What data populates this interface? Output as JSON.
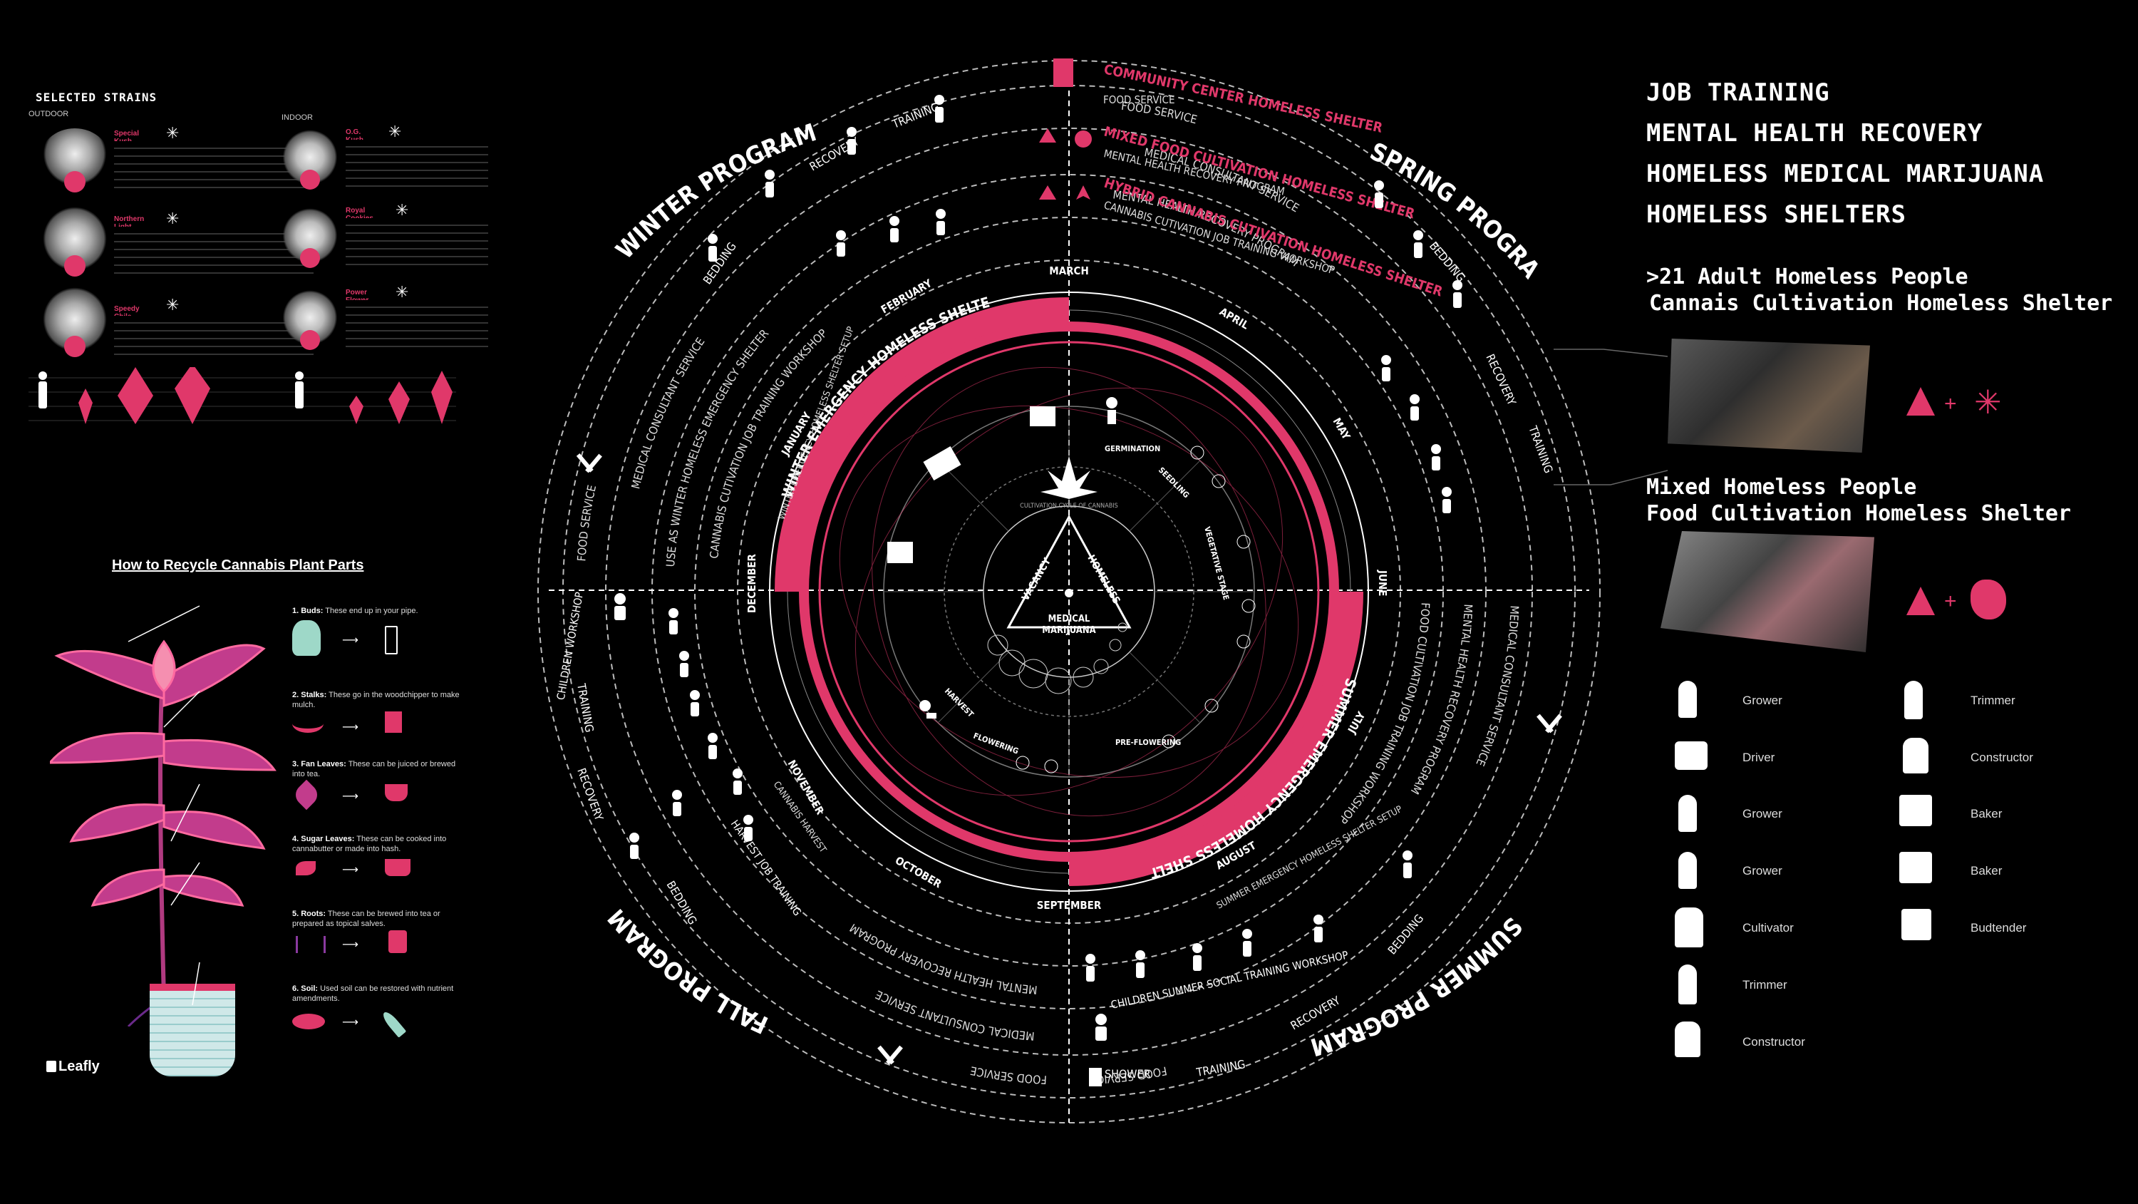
{
  "strains": {
    "heading": "SELECTED STRAINS",
    "outdoor_label": "OUTDOOR",
    "indoor_label": "INDOOR",
    "outdoor": [
      {
        "name": "Special Kush #1"
      },
      {
        "name": "Northern Light"
      },
      {
        "name": "Speedy Chile"
      }
    ],
    "indoor": [
      {
        "name": "O.G. Kush"
      },
      {
        "name": "Royal Cookies"
      },
      {
        "name": "Power Flower"
      }
    ]
  },
  "recycle": {
    "title": "How to Recycle Cannabis Plant Parts",
    "items": [
      {
        "label": "1. Buds:",
        "text": "These end up in your pipe."
      },
      {
        "label": "2. Stalks:",
        "text": "These go in the woodchipper to make mulch."
      },
      {
        "label": "3. Fan Leaves:",
        "text": "These can be juiced or brewed into tea."
      },
      {
        "label": "4. Sugar Leaves:",
        "text": "These can be cooked into cannabutter or made into hash."
      },
      {
        "label": "5. Roots:",
        "text": "These can be brewed into tea or prepared as topical salves."
      },
      {
        "label": "6. Soil:",
        "text": "Used soil can be restored with nutrient amendments."
      }
    ],
    "logo": "Leafly"
  },
  "wheel": {
    "programs": {
      "winter": "WINTER PROGRAM",
      "spring": "SPRING PROGRAM",
      "summer": "SUMMER PROGRAM",
      "fall": "FALL PROGRAM"
    },
    "months": [
      "MARCH",
      "APRIL",
      "MAY",
      "JUNE",
      "JULY",
      "AUGUST",
      "SEPTEMBER",
      "OCTOBER",
      "NOVEMBER",
      "DECEMBER",
      "JANUARY",
      "FEBRUARY"
    ],
    "shelter_top": {
      "community": "COMMUNITY CENTER HOMELESS SHELTER",
      "mixed": "MIXED FOOD CULTIVATION HOMELESS SHELTER",
      "hybrid": "HYBRID CANNABIS CUTIVATION HOMELESS SHELTER"
    },
    "winter_ring": "WINTER EMERGENCY HOMELESS SHELTER",
    "summer_ring": "SUMMER EMERGENCY HOMELESS SHELTER",
    "center": {
      "vacancy": "VACANCY",
      "homeless": "HOMELESS",
      "medical": "MEDICAL",
      "marijuana": "MARIJUANA"
    },
    "cycle_label": "CULTIVATION CYCLE OF CANNABIS",
    "growth_stages": [
      "GERMINATION",
      "SEEDLING",
      "VEGETATIVE STAGE",
      "PRE-FLOWERING",
      "FLOWERING",
      "HARVEST"
    ],
    "services": {
      "food": "FOOD SERVICE",
      "medical": "MEDICAL CONSULTANT SERVICE",
      "mental": "MENTAL HEALTH RECOVERY PROGRAM",
      "cannabis_job": "CANNABIS CUTIVATION JOB TRAINING WORKSHOP",
      "food_job": "FOOD CULTIVATION JOB TRAINING WORKSHOP",
      "bedding": "BEDDING",
      "recovery": "RECOVERY",
      "training": "TRAINING",
      "shower": "SHOWER",
      "children_summer": "CHILDREN SUMMER SOCIAL TRAINING WORKSHOP",
      "summer_setup": "SUMMER EMERGENCY HOMELESS SHELTER SETUP",
      "children_workshop": "CHILDREN WORKSHOP",
      "harvest_job": "HARVEST JOB TRAINING",
      "cannabis_harvest": "CANNABIS HARVEST",
      "winter_use": "USE AS WINTER HOMELESS EMERGENCY SHELTER",
      "winter_setup": "WINTER EMERGENCY HOMELESS SHELTER SETUP"
    }
  },
  "right": {
    "headers": [
      "JOB TRAINING",
      "MENTAL HEALTH RECOVERY",
      "HOMELESS MEDICAL MARIJUANA",
      "HOMELESS SHELTERS"
    ],
    "group1": {
      "line1": ">21 Adult Homeless People",
      "line2": "Cannais Cultivation Homeless Shelter"
    },
    "group2": {
      "line1": "Mixed Homeless People",
      "line2": "Food Cultivation Homeless Shelter"
    },
    "roles_left": [
      "Grower",
      "Driver",
      "Grower",
      "Grower",
      "Cultivator",
      "Trimmer",
      "Constructor"
    ],
    "roles_right": [
      "Trimmer",
      "Constructor",
      "Baker",
      "Baker",
      "Budtender"
    ]
  },
  "colors": {
    "accent": "#e0386a",
    "background": "#000000",
    "text": "#ffffff"
  }
}
